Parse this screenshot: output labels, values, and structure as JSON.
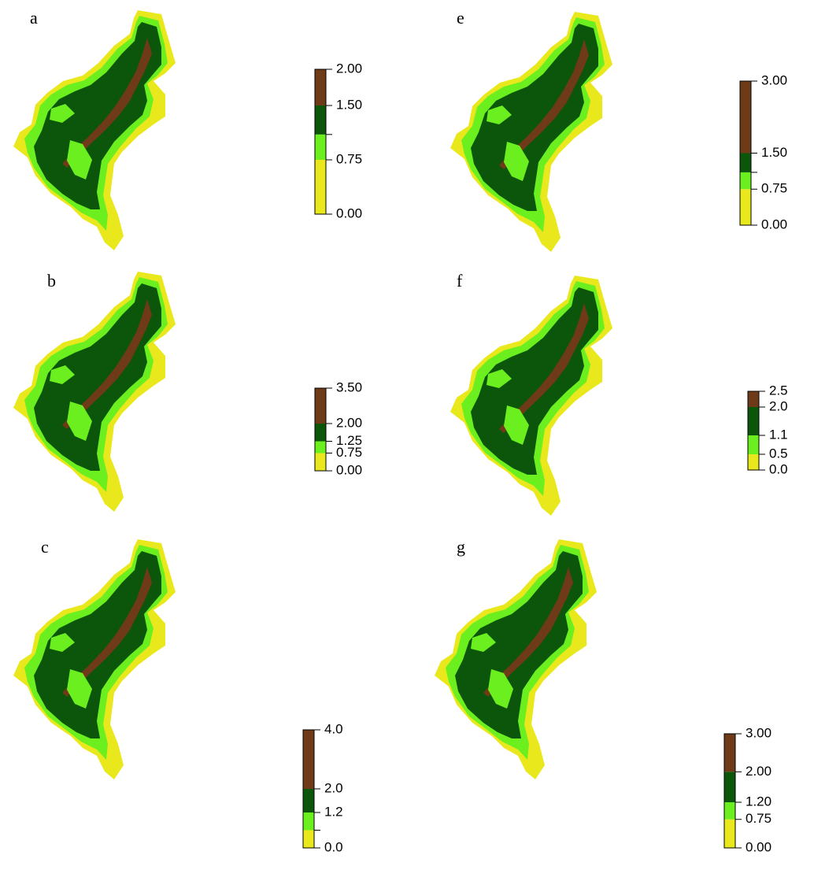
{
  "panels": [
    {
      "label": "a",
      "legend": {
        "ticks": [
          {
            "value": 0,
            "label": "0.00"
          },
          0.75,
          {
            "value": 1.5,
            "label": "1.50"
          },
          {
            "value": 2,
            "label": "2.00"
          }
        ],
        "breaks": [
          0,
          0.75,
          1.1,
          1.5,
          2
        ],
        "colors": [
          "#e8e81c",
          "#6bef1f",
          "#0b560b",
          "#6e3a17"
        ]
      }
    },
    {
      "label": "b",
      "legend": {
        "ticks": [
          {
            "value": 0,
            "label": "0.00"
          },
          0.75,
          1.25,
          {
            "value": 2,
            "label": "2.00"
          },
          {
            "value": 3.5,
            "label": "3.50"
          }
        ],
        "breaks": [
          0,
          0.75,
          1.25,
          2,
          3.5
        ],
        "colors": [
          "#e8e81c",
          "#6bef1f",
          "#0b560b",
          "#6e3a17"
        ]
      }
    },
    {
      "label": "c",
      "legend": {
        "ticks": [
          {
            "value": 0,
            "label": "0.0"
          },
          1.2,
          {
            "value": 2,
            "label": "2.0"
          },
          {
            "value": 4,
            "label": "4.0"
          }
        ],
        "breaks": [
          0,
          0.6,
          1.2,
          2,
          4
        ],
        "colors": [
          "#e8e81c",
          "#6bef1f",
          "#0b560b",
          "#6e3a17"
        ]
      }
    },
    {
      "label": "e",
      "legend": {
        "ticks": [
          {
            "value": 0,
            "label": "0.00"
          },
          0.75,
          {
            "value": 1.5,
            "label": "1.50"
          },
          {
            "value": 3,
            "label": "3.00"
          }
        ],
        "breaks": [
          0,
          0.75,
          1.1,
          1.5,
          3
        ],
        "colors": [
          "#e8e81c",
          "#6bef1f",
          "#0b560b",
          "#6e3a17"
        ]
      }
    },
    {
      "label": "f",
      "legend": {
        "ticks": [
          {
            "value": 0,
            "label": "0.0"
          },
          0.5,
          1.1,
          {
            "value": 2,
            "label": "2.0"
          },
          2.5
        ],
        "breaks": [
          0,
          0.5,
          1.1,
          2,
          2.5
        ],
        "colors": [
          "#e8e81c",
          "#6bef1f",
          "#0b560b",
          "#6e3a17"
        ]
      }
    },
    {
      "label": "g",
      "legend": {
        "ticks": [
          {
            "value": 0,
            "label": "0.00"
          },
          0.75,
          {
            "value": 1.2,
            "label": "1.20"
          },
          {
            "value": 2,
            "label": "2.00"
          },
          {
            "value": 3,
            "label": "3.00"
          }
        ],
        "breaks": [
          0,
          0.75,
          1.2,
          2,
          3
        ],
        "colors": [
          "#e8e81c",
          "#6bef1f",
          "#0b560b",
          "#6e3a17"
        ]
      }
    }
  ]
}
